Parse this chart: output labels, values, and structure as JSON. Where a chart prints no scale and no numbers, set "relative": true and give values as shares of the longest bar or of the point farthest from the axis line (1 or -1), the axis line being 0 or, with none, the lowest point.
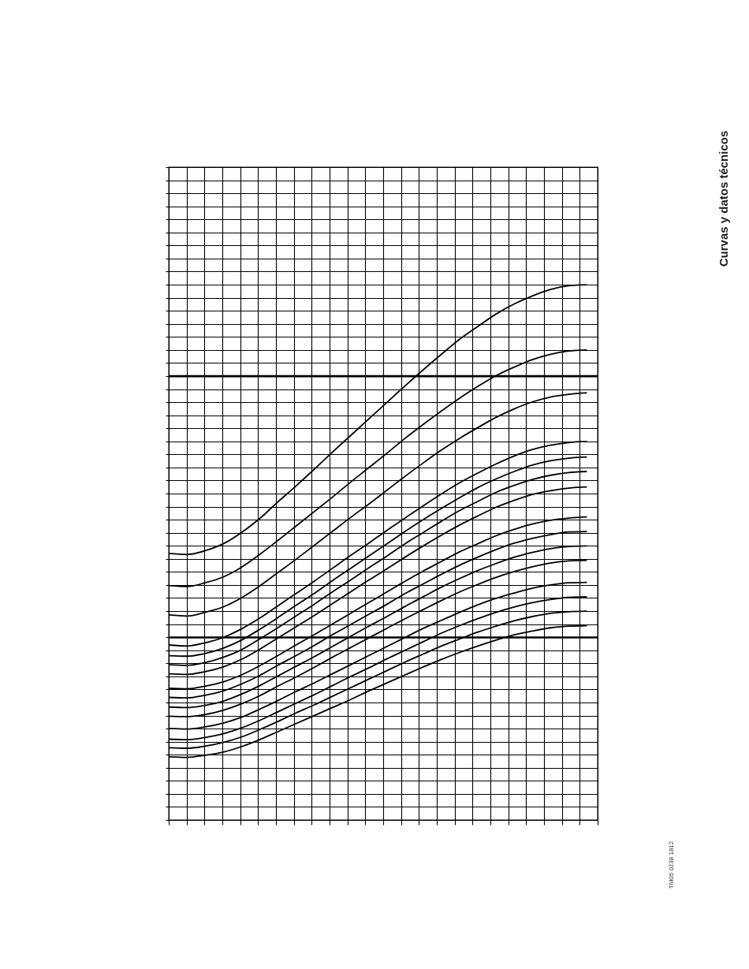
{
  "chart_data": {
    "type": "line",
    "relative": true,
    "grid": true,
    "categories": [
      null,
      null,
      null,
      null,
      null,
      null,
      null,
      null,
      null,
      null,
      null,
      null,
      null,
      null,
      null,
      null,
      null,
      null,
      null,
      null,
      null,
      null,
      null,
      null
    ],
    "series": [
      {
        "color": "#000000",
        "values": [
          0.498,
          0.496,
          0.503,
          0.516,
          0.537,
          0.563,
          0.594,
          0.624,
          0.655,
          0.687,
          0.718,
          0.749,
          0.78,
          0.811,
          0.841,
          0.87,
          0.898,
          0.922,
          0.945,
          0.964,
          0.979,
          0.991,
          0.998,
          1.0
        ]
      },
      {
        "color": "#000000",
        "values": [
          0.438,
          0.436,
          0.443,
          0.454,
          0.472,
          0.496,
          0.522,
          0.549,
          0.576,
          0.603,
          0.631,
          0.658,
          0.685,
          0.713,
          0.739,
          0.764,
          0.788,
          0.81,
          0.83,
          0.846,
          0.86,
          0.87,
          0.876,
          0.878
        ]
      },
      {
        "color": "#000000",
        "values": [
          0.383,
          0.381,
          0.388,
          0.398,
          0.415,
          0.437,
          0.462,
          0.487,
          0.513,
          0.539,
          0.565,
          0.59,
          0.616,
          0.642,
          0.667,
          0.691,
          0.713,
          0.733,
          0.752,
          0.768,
          0.781,
          0.79,
          0.795,
          0.798
        ]
      },
      {
        "color": "#000000",
        "values": [
          0.327,
          0.325,
          0.331,
          0.341,
          0.357,
          0.377,
          0.4,
          0.423,
          0.446,
          0.47,
          0.494,
          0.517,
          0.541,
          0.564,
          0.587,
          0.609,
          0.63,
          0.648,
          0.665,
          0.68,
          0.692,
          0.7,
          0.705,
          0.707
        ]
      },
      {
        "color": "#000000",
        "values": [
          0.307,
          0.306,
          0.311,
          0.321,
          0.336,
          0.356,
          0.378,
          0.401,
          0.423,
          0.447,
          0.47,
          0.493,
          0.516,
          0.539,
          0.561,
          0.582,
          0.602,
          0.621,
          0.637,
          0.651,
          0.663,
          0.671,
          0.676,
          0.678
        ]
      },
      {
        "color": "#000000",
        "values": [
          0.29,
          0.289,
          0.294,
          0.304,
          0.318,
          0.338,
          0.359,
          0.381,
          0.403,
          0.426,
          0.448,
          0.471,
          0.493,
          0.516,
          0.537,
          0.558,
          0.578,
          0.595,
          0.612,
          0.625,
          0.636,
          0.644,
          0.649,
          0.651
        ]
      },
      {
        "color": "#000000",
        "values": [
          0.273,
          0.272,
          0.277,
          0.286,
          0.3,
          0.319,
          0.34,
          0.361,
          0.382,
          0.404,
          0.426,
          0.448,
          0.469,
          0.491,
          0.512,
          0.532,
          0.551,
          0.568,
          0.584,
          0.597,
          0.608,
          0.615,
          0.62,
          0.622
        ]
      },
      {
        "color": "#000000",
        "values": [
          0.246,
          0.245,
          0.25,
          0.258,
          0.271,
          0.288,
          0.307,
          0.327,
          0.346,
          0.366,
          0.386,
          0.406,
          0.426,
          0.446,
          0.465,
          0.483,
          0.501,
          0.516,
          0.531,
          0.543,
          0.553,
          0.56,
          0.564,
          0.566
        ]
      },
      {
        "color": "#000000",
        "values": [
          0.229,
          0.228,
          0.233,
          0.241,
          0.254,
          0.27,
          0.289,
          0.307,
          0.326,
          0.346,
          0.365,
          0.384,
          0.403,
          0.423,
          0.441,
          0.459,
          0.476,
          0.491,
          0.505,
          0.517,
          0.526,
          0.533,
          0.538,
          0.539
        ]
      },
      {
        "color": "#000000",
        "values": [
          0.211,
          0.21,
          0.214,
          0.222,
          0.235,
          0.251,
          0.269,
          0.287,
          0.305,
          0.324,
          0.343,
          0.362,
          0.38,
          0.399,
          0.417,
          0.435,
          0.451,
          0.466,
          0.479,
          0.491,
          0.5,
          0.507,
          0.511,
          0.512
        ]
      },
      {
        "color": "#000000",
        "values": [
          0.194,
          0.193,
          0.197,
          0.205,
          0.217,
          0.232,
          0.25,
          0.267,
          0.285,
          0.304,
          0.322,
          0.34,
          0.358,
          0.376,
          0.393,
          0.41,
          0.426,
          0.44,
          0.453,
          0.464,
          0.473,
          0.48,
          0.484,
          0.485
        ]
      },
      {
        "color": "#000000",
        "values": [
          0.171,
          0.17,
          0.174,
          0.181,
          0.192,
          0.207,
          0.223,
          0.24,
          0.256,
          0.273,
          0.29,
          0.307,
          0.324,
          0.341,
          0.358,
          0.373,
          0.388,
          0.402,
          0.414,
          0.424,
          0.433,
          0.439,
          0.443,
          0.444
        ]
      },
      {
        "color": "#000000",
        "values": [
          0.151,
          0.15,
          0.154,
          0.161,
          0.172,
          0.186,
          0.202,
          0.218,
          0.234,
          0.251,
          0.268,
          0.284,
          0.301,
          0.317,
          0.333,
          0.349,
          0.363,
          0.376,
          0.388,
          0.398,
          0.406,
          0.412,
          0.416,
          0.417
        ]
      },
      {
        "color": "#000000",
        "values": [
          0.135,
          0.134,
          0.138,
          0.145,
          0.155,
          0.169,
          0.184,
          0.2,
          0.215,
          0.231,
          0.247,
          0.263,
          0.279,
          0.295,
          0.31,
          0.325,
          0.338,
          0.351,
          0.362,
          0.372,
          0.38,
          0.386,
          0.389,
          0.39
        ]
      },
      {
        "color": "#000000",
        "values": [
          0.118,
          0.117,
          0.121,
          0.127,
          0.137,
          0.15,
          0.165,
          0.18,
          0.195,
          0.21,
          0.225,
          0.241,
          0.256,
          0.271,
          0.286,
          0.3,
          0.313,
          0.325,
          0.336,
          0.346,
          0.353,
          0.359,
          0.362,
          0.363
        ]
      }
    ],
    "ref_lines": [
      {
        "axis": "y",
        "value": 0.829,
        "color": "#000000"
      },
      {
        "axis": "y",
        "value": 0.341,
        "color": "#000000"
      }
    ],
    "annotations": [
      "Curvas y datos técnicos",
      "TM05 0238 1812"
    ]
  }
}
